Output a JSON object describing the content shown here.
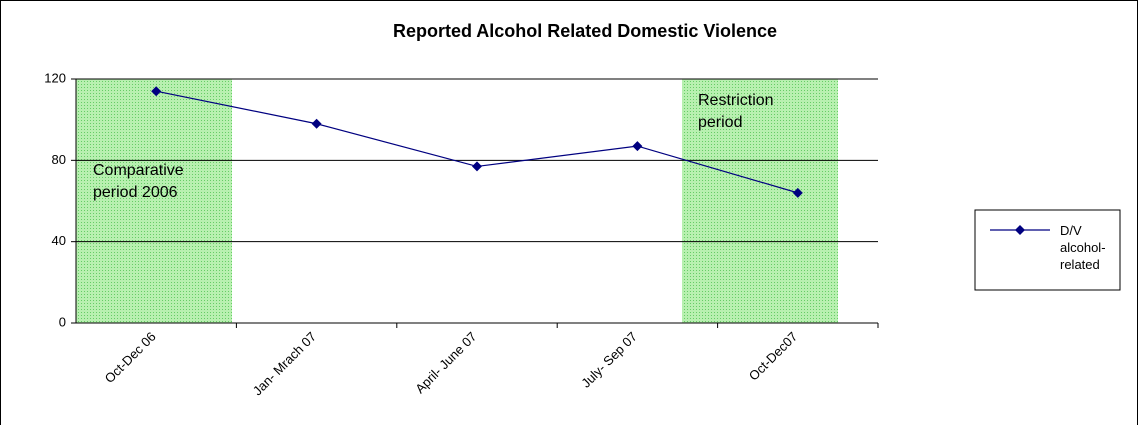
{
  "chart_data": {
    "type": "line",
    "title": "Reported Alcohol Related Domestic Violence",
    "categories": [
      "Oct-Dec 06",
      "Jan- Mrach 07",
      "April- June 07",
      "July- Sep 07",
      "Oct-Dec07"
    ],
    "series": [
      {
        "name": "D/V alcohol-related",
        "color": "#000080",
        "values": [
          114,
          98,
          77,
          87,
          64
        ]
      }
    ],
    "ylim": [
      0,
      120
    ],
    "yticks": [
      0,
      40,
      80,
      120
    ],
    "grid": true,
    "annotations": [
      "Comparative period 2006",
      "Restriction period"
    ]
  }
}
